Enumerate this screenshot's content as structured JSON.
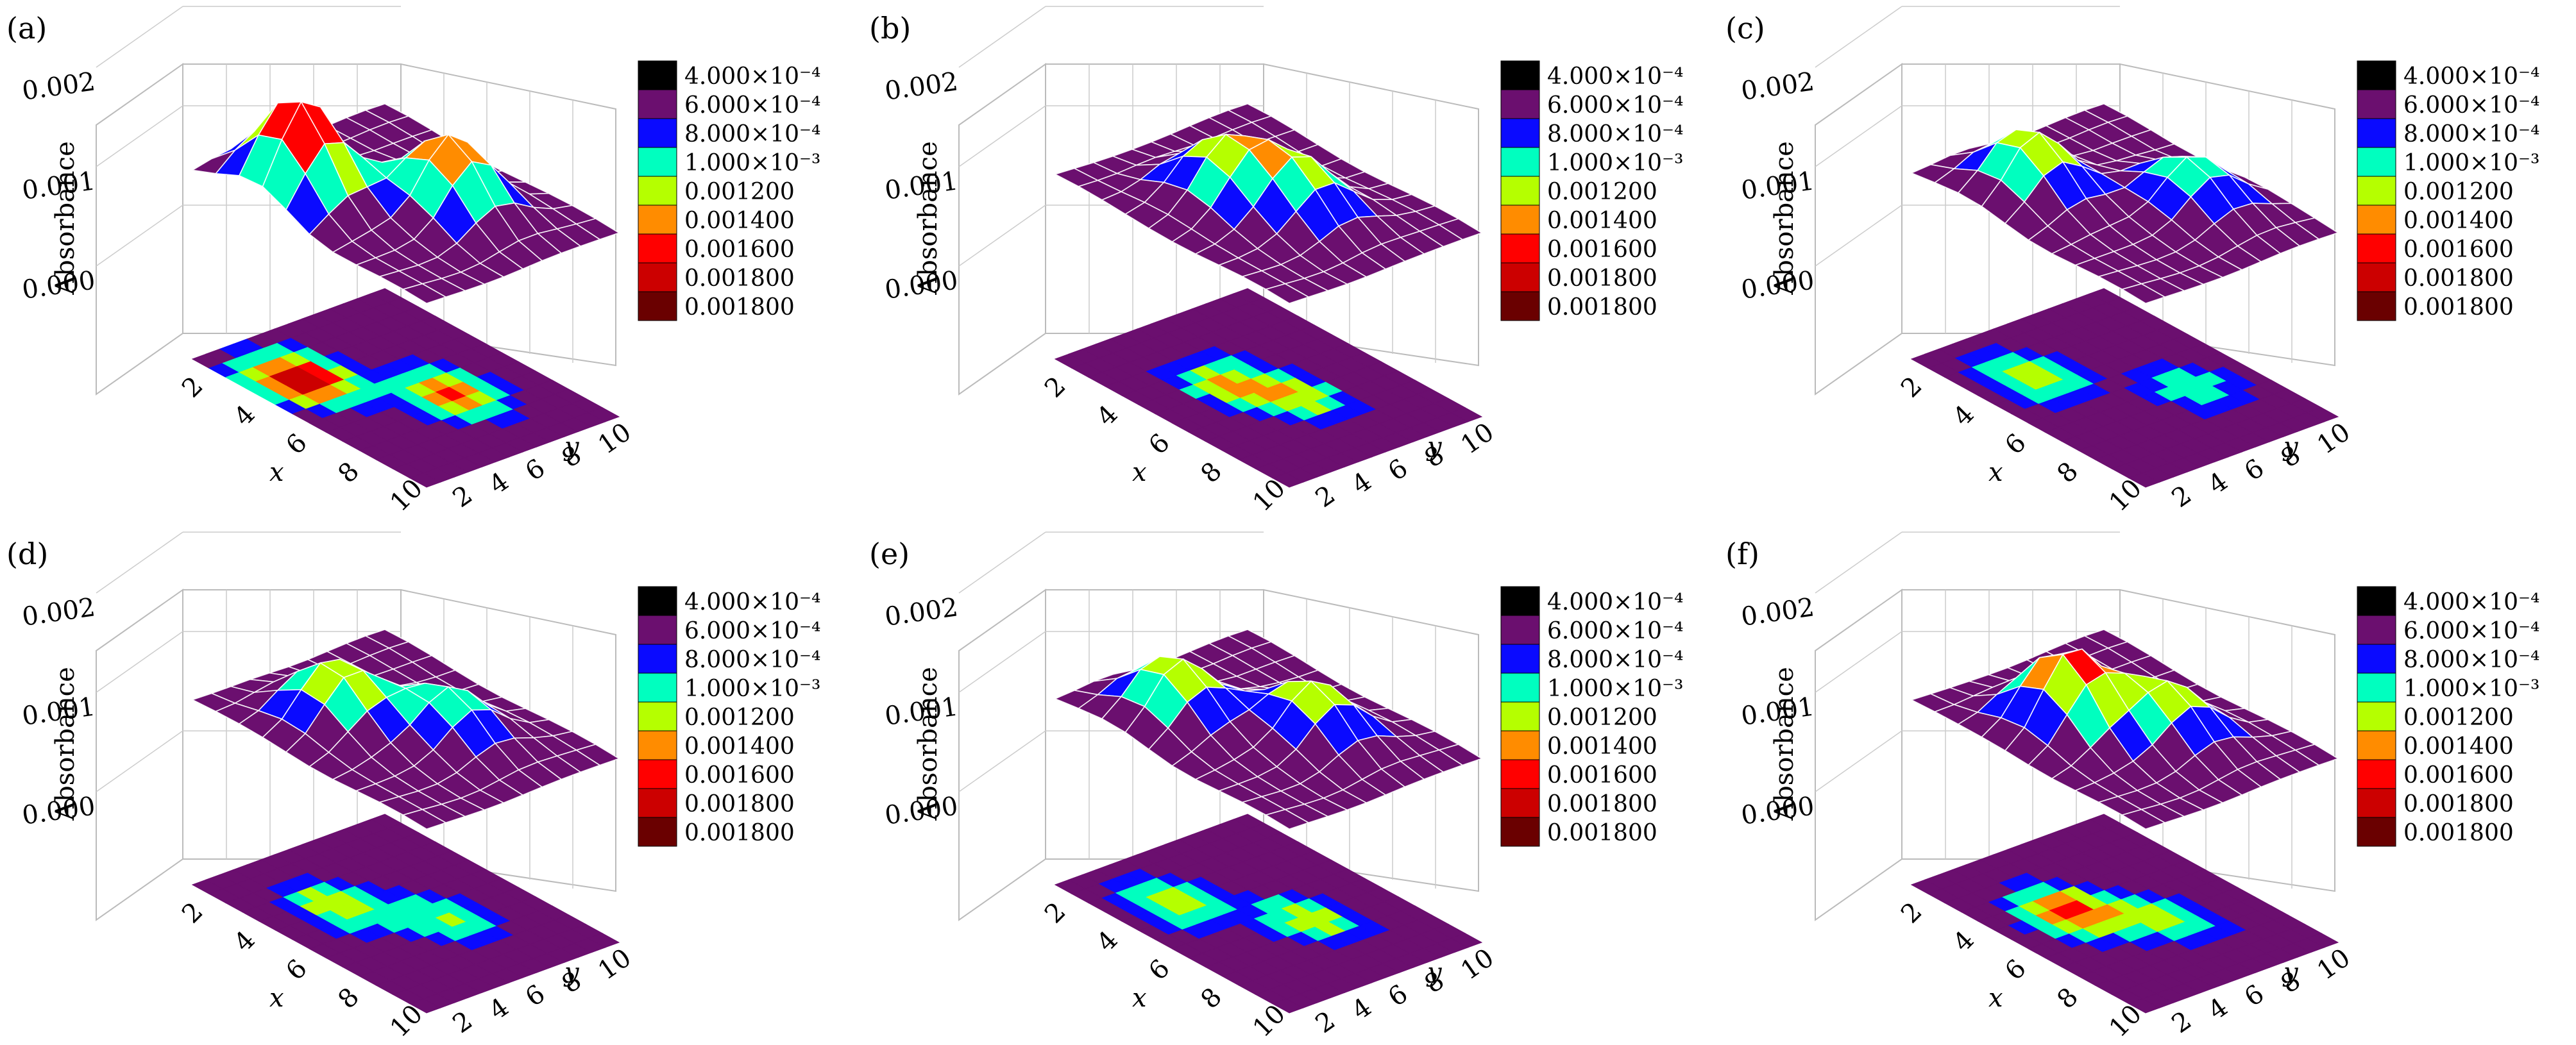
{
  "panels": [
    {
      "label": "(a)",
      "ylabel": "Absorbance",
      "xlabel": "x",
      "ylabel2": "y",
      "z_ticks": [
        "0.002",
        "0.001",
        "0.000"
      ],
      "x_ticks": [
        "2",
        "4",
        "6",
        "8",
        "10"
      ],
      "y_ticks": [
        "2",
        "4",
        "6",
        "8",
        "10"
      ],
      "bumps": [
        {
          "x": 3.5,
          "y": 3.0,
          "z": 0.00175
        },
        {
          "x": 6.5,
          "y": 6.5,
          "z": 0.0014
        }
      ]
    },
    {
      "label": "(b)",
      "ylabel": "Absorbance",
      "xlabel": "x",
      "ylabel2": "y",
      "z_ticks": [
        "0.002",
        "0.001",
        "0.000"
      ],
      "x_ticks": [
        "2",
        "4",
        "6",
        "8",
        "10"
      ],
      "y_ticks": [
        "2",
        "4",
        "6",
        "8",
        "10"
      ],
      "bumps": [
        {
          "x": 4.5,
          "y": 4.5,
          "z": 0.00108
        },
        {
          "x": 6.5,
          "y": 6.0,
          "z": 0.00104
        }
      ]
    },
    {
      "label": "(c)",
      "ylabel": "Absorbance",
      "xlabel": "x",
      "ylabel2": "y",
      "z_ticks": [
        "0.002",
        "0.001",
        "0.000"
      ],
      "x_ticks": [
        "2",
        "4",
        "6",
        "8",
        "10"
      ],
      "y_ticks": [
        "2",
        "4",
        "6",
        "8",
        "10"
      ],
      "bumps": [
        {
          "x": 3.5,
          "y": 3.5,
          "z": 0.0012
        },
        {
          "x": 6.5,
          "y": 7.5,
          "z": 0.001
        }
      ]
    },
    {
      "label": "(d)",
      "ylabel": "Absorbance",
      "xlabel": "x",
      "ylabel2": "y",
      "z_ticks": [
        "0.002",
        "0.001",
        "0.000"
      ],
      "x_ticks": [
        "2",
        "4",
        "6",
        "8",
        "10"
      ],
      "y_ticks": [
        "2",
        "4",
        "6",
        "8",
        "10"
      ],
      "bumps": [
        {
          "x": 4.0,
          "y": 4.0,
          "z": 0.00115
        },
        {
          "x": 6.5,
          "y": 6.5,
          "z": 0.001
        }
      ]
    },
    {
      "label": "(e)",
      "ylabel": "Absorbance",
      "xlabel": "x",
      "ylabel2": "y",
      "z_ticks": [
        "0.002",
        "0.001",
        "0.000"
      ],
      "x_ticks": [
        "2",
        "4",
        "6",
        "8",
        "10"
      ],
      "y_ticks": [
        "2",
        "4",
        "6",
        "8",
        "10"
      ],
      "bumps": [
        {
          "x": 3.5,
          "y": 3.5,
          "z": 0.00118
        },
        {
          "x": 6.5,
          "y": 6.5,
          "z": 0.0011
        }
      ]
    },
    {
      "label": "(f)",
      "ylabel": "Absorbance",
      "xlabel": "x",
      "ylabel2": "y",
      "z_ticks": [
        "0.002",
        "0.001",
        "0.000"
      ],
      "x_ticks": [
        "2",
        "4",
        "6",
        "8",
        "10"
      ],
      "y_ticks": [
        "2",
        "4",
        "6",
        "8",
        "10"
      ],
      "bumps": [
        {
          "x": 4.5,
          "y": 4.0,
          "z": 0.0014
        },
        {
          "x": 6.5,
          "y": 6.5,
          "z": 0.00105
        }
      ]
    }
  ],
  "colorbar": {
    "labels": [
      "4.000×10⁻⁴",
      "6.000×10⁻⁴",
      "8.000×10⁻⁴",
      "1.000×10⁻³",
      "0.001200",
      "0.001400",
      "0.001600",
      "0.001800",
      "0.001800"
    ],
    "colors": [
      "#000000",
      "#6b0f6f",
      "#0a0aff",
      "#00ffbf",
      "#b5ff00",
      "#ff8c00",
      "#ff0000",
      "#cc0000",
      "#6a0000"
    ]
  },
  "chart_data": [
    {
      "type": "surface",
      "title": "(a)",
      "zlabel": "Absorbance",
      "xlabel": "x",
      "ylabel": "y",
      "xlim": [
        1,
        10
      ],
      "ylim": [
        1,
        10
      ],
      "zlim": [
        0.0,
        0.002
      ]
    },
    {
      "type": "surface",
      "title": "(b)",
      "zlabel": "Absorbance",
      "xlabel": "x",
      "ylabel": "y",
      "xlim": [
        1,
        10
      ],
      "ylim": [
        1,
        10
      ],
      "zlim": [
        0.0,
        0.002
      ]
    },
    {
      "type": "surface",
      "title": "(c)",
      "zlabel": "Absorbance",
      "xlabel": "x",
      "ylabel": "y",
      "xlim": [
        1,
        10
      ],
      "ylim": [
        1,
        10
      ],
      "zlim": [
        0.0,
        0.002
      ]
    },
    {
      "type": "surface",
      "title": "(d)",
      "zlabel": "Absorbance",
      "xlabel": "x",
      "ylabel": "y",
      "xlim": [
        1,
        10
      ],
      "ylim": [
        1,
        10
      ],
      "zlim": [
        0.0,
        0.002
      ]
    },
    {
      "type": "surface",
      "title": "(e)",
      "zlabel": "Absorbance",
      "xlabel": "x",
      "ylabel": "y",
      "xlim": [
        1,
        10
      ],
      "ylim": [
        1,
        10
      ],
      "zlim": [
        0.0,
        0.002
      ]
    },
    {
      "type": "surface",
      "title": "(f)",
      "zlabel": "Absorbance",
      "xlabel": "x",
      "ylabel": "y",
      "xlim": [
        1,
        10
      ],
      "ylim": [
        1,
        10
      ],
      "zlim": [
        0.0,
        0.002
      ]
    }
  ]
}
